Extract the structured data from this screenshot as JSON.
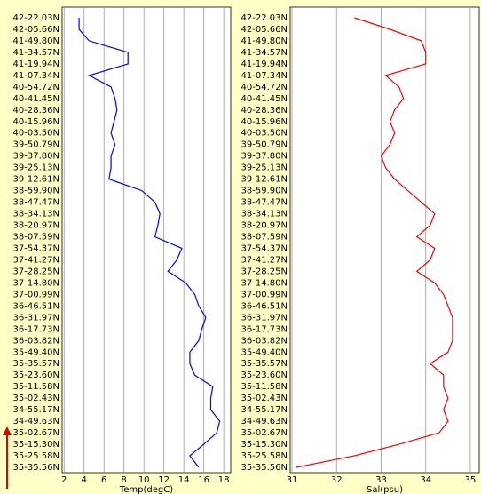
{
  "chart_data": [
    {
      "type": "line",
      "categories": [
        "42-22.03N",
        "42-05.66N",
        "41-49.80N",
        "41-34.57N",
        "41-19.94N",
        "41-07.34N",
        "40-54.72N",
        "40-41.45N",
        "40-28.36N",
        "40-15.96N",
        "40-03.50N",
        "39-50.79N",
        "39-37.80N",
        "39-25.13N",
        "39-12.61N",
        "38-59.90N",
        "38-47.47N",
        "38-34.13N",
        "38-20.97N",
        "38-07.59N",
        "37-54.37N",
        "37-41.27N",
        "37-28.25N",
        "37-14.80N",
        "37-00.99N",
        "36-46.51N",
        "36-31.97N",
        "36-17.73N",
        "36-03.82N",
        "35-49.40N",
        "35-35.57N",
        "35-23.60N",
        "35-11.58N",
        "35-02.43N",
        "34-55.17N",
        "34-49.63N",
        "35-02.67N",
        "35-15.30N",
        "35-25.58N",
        "35-35.56N"
      ],
      "xlabel": "Temp(degC)",
      "xlim": [
        1.8,
        18.7
      ],
      "xticks": [
        2,
        4,
        6,
        8,
        10,
        12,
        14,
        16,
        18
      ],
      "grid": true,
      "series": [
        {
          "color": "#0000ff",
          "values": [
            3.5,
            3.5,
            4.5,
            8.4,
            8.4,
            4.5,
            6.7,
            7.1,
            7.3,
            7.0,
            6.7,
            7.1,
            6.7,
            6.7,
            6.5,
            9.8,
            11.1,
            11.6,
            11.4,
            11.1,
            13.8,
            13.3,
            12.4,
            14.2,
            15.1,
            15.5,
            16.2,
            15.8,
            15.5,
            14.6,
            14.6,
            15.1,
            16.9,
            16.7,
            16.7,
            17.6,
            17.3,
            16.0,
            14.6,
            15.5
          ]
        }
      ]
    },
    {
      "type": "line",
      "categories": [
        "42-22.03N",
        "42-05.66N",
        "41-49.80N",
        "41-34.57N",
        "41-19.94N",
        "41-07.34N",
        "40-54.72N",
        "40-41.45N",
        "40-28.36N",
        "40-15.96N",
        "40-03.50N",
        "39-50.79N",
        "39-37.80N",
        "39-25.13N",
        "39-12.61N",
        "38-59.90N",
        "38-47.47N",
        "38-34.13N",
        "38-20.97N",
        "38-07.59N",
        "37-54.37N",
        "37-41.27N",
        "37-28.25N",
        "37-14.80N",
        "37-00.99N",
        "36-46.51N",
        "36-31.97N",
        "36-17.73N",
        "36-03.82N",
        "35-49.40N",
        "35-35.57N",
        "35-23.60N",
        "35-11.58N",
        "35-02.43N",
        "34-55.17N",
        "34-49.63N",
        "35-02.67N",
        "35-15.30N",
        "35-25.58N",
        "35-35.56N"
      ],
      "xlabel": "Sal(psu)",
      "xlim": [
        30.96,
        35.2
      ],
      "xticks": [
        31,
        32,
        33,
        34,
        35
      ],
      "grid": true,
      "series": [
        {
          "color": "#ff0000",
          "values": [
            32.4,
            33.2,
            33.9,
            34.0,
            34.0,
            33.1,
            33.4,
            33.5,
            33.3,
            33.2,
            33.3,
            33.2,
            33.0,
            33.1,
            33.3,
            33.6,
            33.9,
            34.2,
            34.1,
            33.8,
            34.2,
            34.1,
            33.8,
            34.2,
            34.4,
            34.5,
            34.6,
            34.6,
            34.6,
            34.5,
            34.1,
            34.4,
            34.4,
            34.5,
            34.4,
            34.5,
            34.3,
            33.4,
            32.4,
            31.1
          ]
        }
      ]
    }
  ]
}
